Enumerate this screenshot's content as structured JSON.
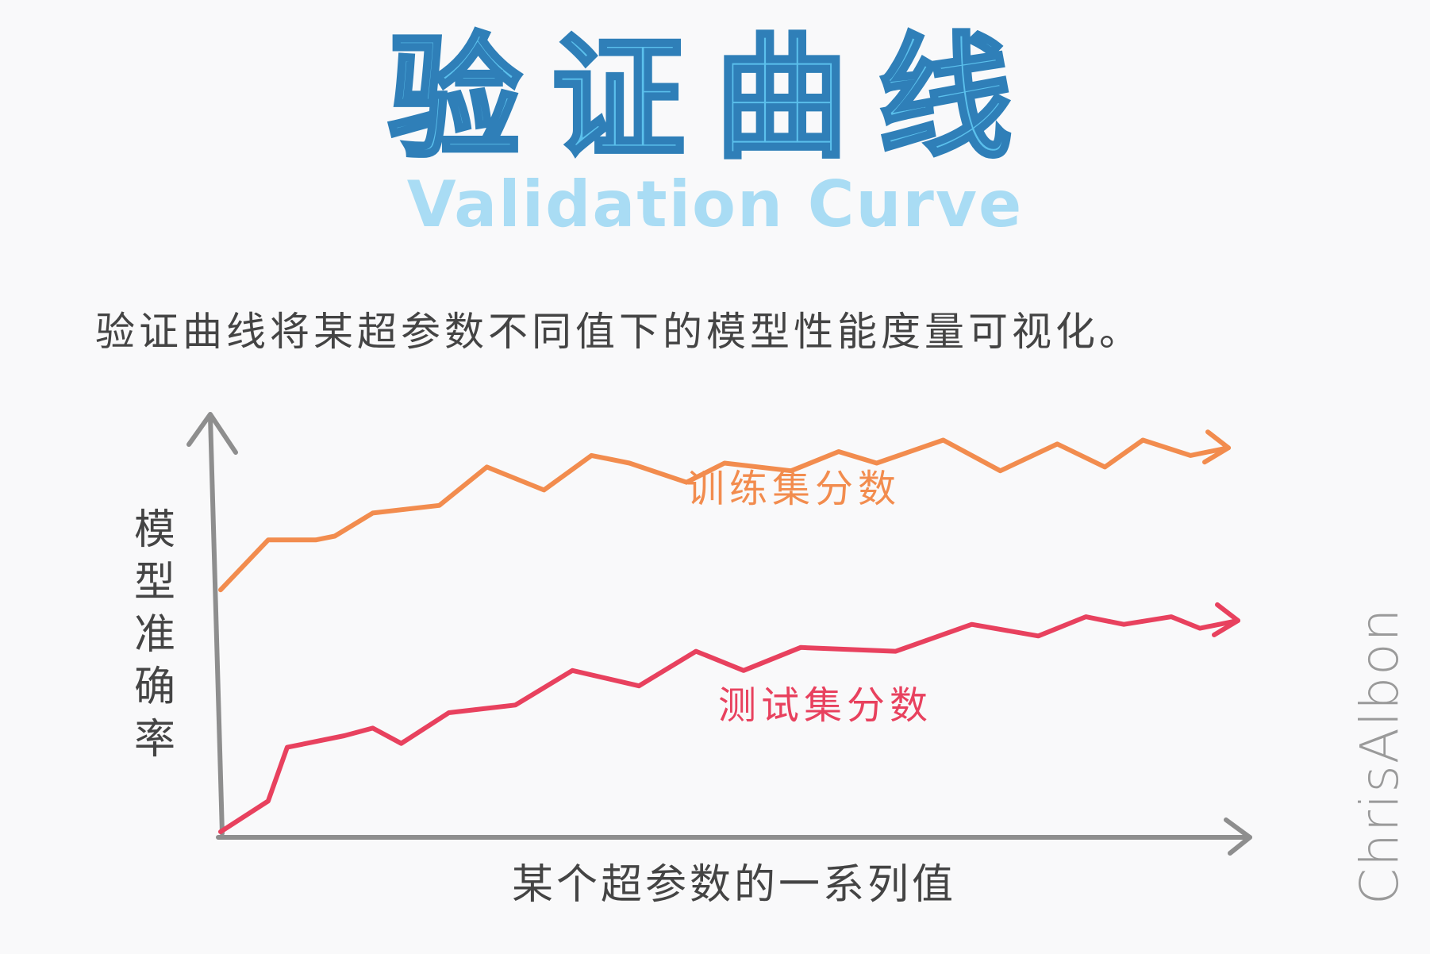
{
  "title_cn": "验证曲线",
  "title_en": "Validation Curve",
  "subtitle": "验证曲线将某超参数不同值下的模型性能度量可视化。",
  "watermark": "ChrisAlbon",
  "colors": {
    "title_fill": "#5bc0ec",
    "title_en": "#a9dcf4",
    "train": "#f28c4e",
    "test": "#e8415e",
    "axis": "#8e8e8e",
    "text": "#444444"
  },
  "chart_data": {
    "type": "line",
    "xlabel": "某个超参数的一系列值",
    "ylabel": "模型准确率",
    "series": [
      {
        "name": "训练集分数",
        "color": "#f28c4e",
        "values": [
          [
            0,
            0.63
          ],
          [
            0.05,
            0.76
          ],
          [
            0.1,
            0.76
          ],
          [
            0.12,
            0.77
          ],
          [
            0.16,
            0.83
          ],
          [
            0.23,
            0.85
          ],
          [
            0.28,
            0.95
          ],
          [
            0.34,
            0.89
          ],
          [
            0.39,
            0.98
          ],
          [
            0.43,
            0.96
          ],
          [
            0.49,
            0.91
          ],
          [
            0.53,
            0.96
          ],
          [
            0.6,
            0.94
          ],
          [
            0.65,
            0.99
          ],
          [
            0.69,
            0.96
          ],
          [
            0.76,
            1.02
          ],
          [
            0.82,
            0.94
          ],
          [
            0.88,
            1.01
          ],
          [
            0.93,
            0.95
          ],
          [
            0.97,
            1.02
          ],
          [
            1.02,
            0.98
          ],
          [
            1.06,
            1.0
          ]
        ]
      },
      {
        "name": "测试集分数",
        "color": "#e8415e",
        "values": [
          [
            0,
            0.0
          ],
          [
            0.05,
            0.08
          ],
          [
            0.07,
            0.22
          ],
          [
            0.13,
            0.25
          ],
          [
            0.16,
            0.27
          ],
          [
            0.19,
            0.23
          ],
          [
            0.24,
            0.31
          ],
          [
            0.31,
            0.33
          ],
          [
            0.37,
            0.42
          ],
          [
            0.44,
            0.38
          ],
          [
            0.5,
            0.47
          ],
          [
            0.55,
            0.42
          ],
          [
            0.61,
            0.48
          ],
          [
            0.71,
            0.47
          ],
          [
            0.79,
            0.54
          ],
          [
            0.86,
            0.51
          ],
          [
            0.91,
            0.56
          ],
          [
            0.95,
            0.54
          ],
          [
            1.0,
            0.56
          ],
          [
            1.03,
            0.53
          ],
          [
            1.07,
            0.55
          ]
        ]
      }
    ]
  }
}
